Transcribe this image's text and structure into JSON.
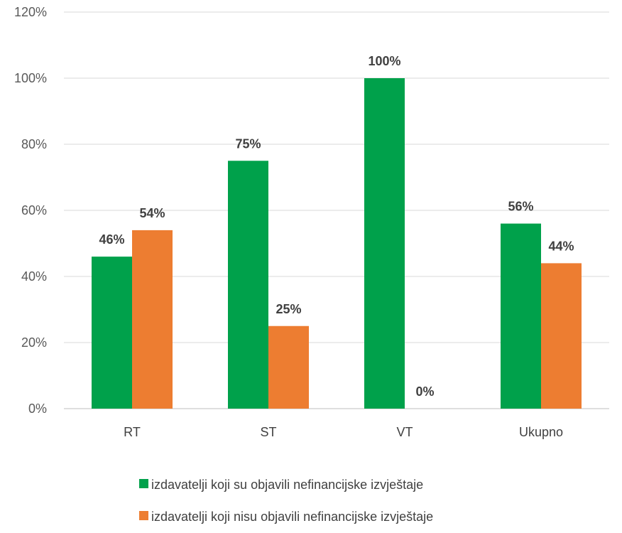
{
  "chart_data": {
    "type": "bar",
    "categories": [
      "RT",
      "ST",
      "VT",
      "Ukupno"
    ],
    "series": [
      {
        "name": "izdavatelji koji su objavili nefinancijske izvještaje",
        "values": [
          46,
          75,
          100,
          56
        ],
        "labels": [
          "46%",
          "75%",
          "100%",
          "56%"
        ],
        "color": "#00A14B"
      },
      {
        "name": "izdavatelji koji nisu objavili nefinancijske izvještaje",
        "values": [
          54,
          25,
          0,
          44
        ],
        "labels": [
          "54%",
          "25%",
          "0%",
          "44%"
        ],
        "color": "#ED7D31"
      }
    ],
    "ylim": [
      0,
      120
    ],
    "yticks": [
      0,
      20,
      40,
      60,
      80,
      100,
      120
    ],
    "ytick_labels": [
      "0%",
      "20%",
      "40%",
      "60%",
      "80%",
      "100%",
      "120%"
    ],
    "grid": true,
    "gridline_color": "#D9D9D9",
    "legend_position": "bottom"
  }
}
